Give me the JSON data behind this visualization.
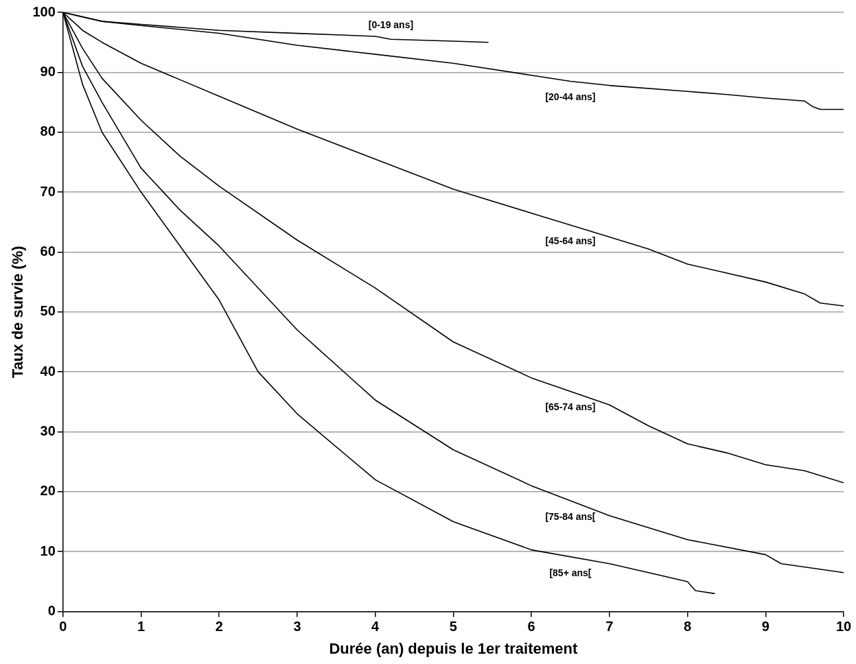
{
  "chart_data": {
    "type": "line",
    "xlabel": "Durée (an) depuis le 1er traitement",
    "ylabel": "Taux de survie (%)",
    "xlim": [
      0,
      10
    ],
    "xticks": [
      0,
      1,
      2,
      3,
      4,
      5,
      6,
      7,
      8,
      9,
      10
    ],
    "ylim": [
      0,
      100
    ],
    "yticks": [
      0,
      10,
      20,
      30,
      40,
      50,
      60,
      70,
      80,
      90,
      100
    ],
    "grid": "y",
    "marker": "none",
    "series": [
      {
        "name": "[0-19 ans]",
        "color": "#000000",
        "x": [
          0,
          0.5,
          1,
          2,
          3,
          4,
          4.2,
          5,
          5.45
        ],
        "values": [
          100,
          98.5,
          98,
          97,
          96.5,
          96,
          95.5,
          95.2,
          95
        ]
      },
      {
        "name": "[20-44 ans]",
        "color": "#000000",
        "x": [
          0,
          0.5,
          1,
          2,
          2.5,
          3,
          4,
          5,
          6,
          6.5,
          7,
          8,
          8.5,
          9,
          9.5,
          9.6,
          9.7,
          10
        ],
        "values": [
          100,
          98.5,
          97.8,
          96.5,
          95.5,
          94.5,
          93,
          91.5,
          89.5,
          88.5,
          87.8,
          86.8,
          86.3,
          85.7,
          85.2,
          84.3,
          83.8,
          83.8
        ]
      },
      {
        "name": "[45-64 ans]",
        "color": "#000000",
        "x": [
          0,
          0.25,
          0.5,
          1,
          2,
          3,
          4,
          5,
          6,
          7,
          7.5,
          8,
          8.5,
          9,
          9.5,
          9.7,
          10
        ],
        "values": [
          100,
          97,
          95,
          91.5,
          86,
          80.5,
          75.5,
          70.5,
          66.5,
          62.5,
          60.5,
          58,
          56.5,
          55,
          53,
          51.5,
          51
        ]
      },
      {
        "name": "[65-74 ans]",
        "color": "#000000",
        "x": [
          0,
          0.25,
          0.5,
          1,
          1.5,
          2,
          3,
          4,
          5,
          6,
          7,
          7.5,
          8,
          8.5,
          9,
          9.5,
          10
        ],
        "values": [
          100,
          94,
          89,
          82,
          76,
          71,
          62,
          54,
          45,
          39,
          34.5,
          31,
          28,
          26.5,
          24.5,
          23.5,
          21.5
        ]
      },
      {
        "name": "[75-84 ans[",
        "color": "#000000",
        "x": [
          0,
          0.25,
          0.5,
          1,
          1.5,
          2,
          3,
          4,
          5,
          6,
          7,
          8,
          9,
          9.2,
          10
        ],
        "values": [
          100,
          91,
          85,
          74,
          67,
          61,
          47,
          35.3,
          27,
          21,
          16,
          12,
          9.5,
          8,
          6.5
        ]
      },
      {
        "name": "[85+ ans[",
        "color": "#000000",
        "x": [
          0,
          0.25,
          0.5,
          1,
          1.5,
          2,
          2.5,
          3,
          4,
          5,
          6,
          7,
          7.5,
          8,
          8.1,
          8.35
        ],
        "values": [
          100,
          88,
          80,
          70,
          61,
          52,
          40,
          33,
          22,
          15,
          10.3,
          8,
          6.5,
          5,
          3.5,
          3
        ]
      }
    ]
  }
}
